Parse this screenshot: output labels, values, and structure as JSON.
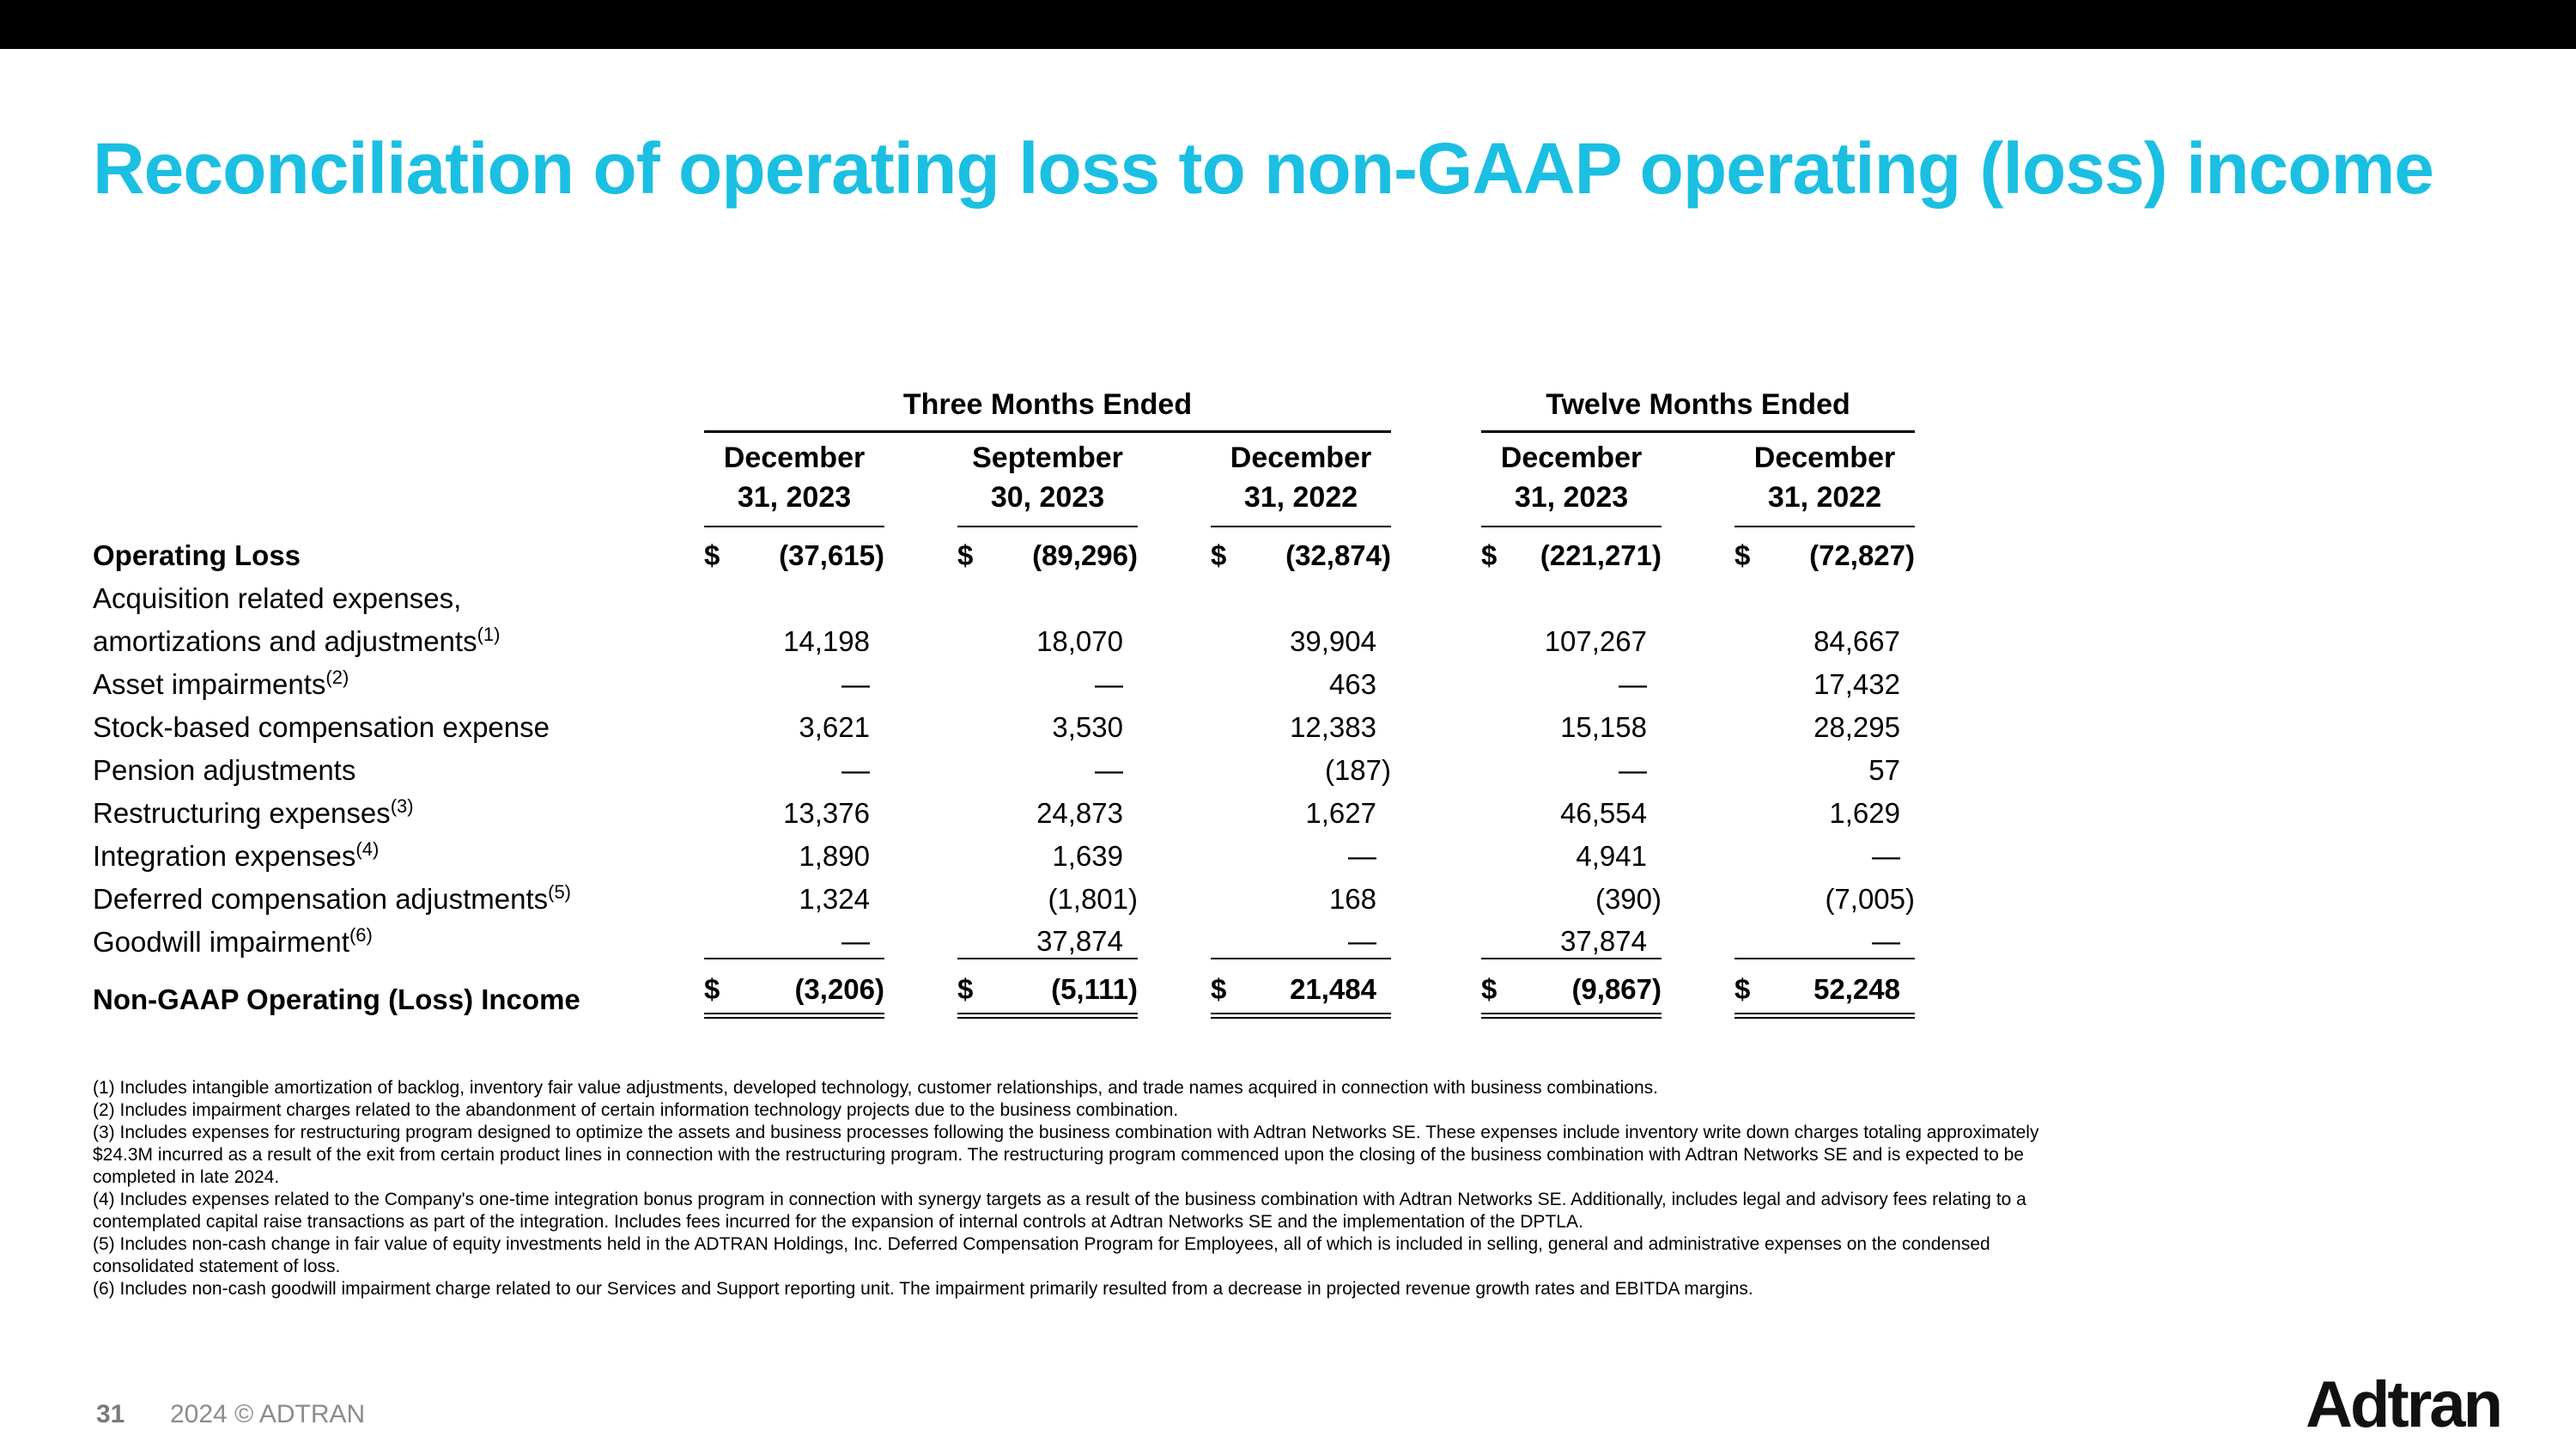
{
  "slide": {
    "title": "Reconciliation of operating loss to non-GAAP operating (loss) income",
    "accent_color": "#1BBFE2",
    "footer": {
      "page_number": "31",
      "copyright": "2024 © ADTRAN",
      "logo_text": "Adtran"
    }
  },
  "table": {
    "group_headers": [
      "Three Months Ended",
      "Twelve Months Ended"
    ],
    "columns": [
      {
        "line1": "December",
        "line2": "31, 2023"
      },
      {
        "line1": "September",
        "line2": "30, 2023"
      },
      {
        "line1": "December",
        "line2": "31, 2022"
      },
      {
        "line1": "December",
        "line2": "31, 2023"
      },
      {
        "line1": "December",
        "line2": "31, 2022"
      }
    ],
    "rows": [
      {
        "label": "Operating Loss",
        "sup": "",
        "ds": "$",
        "values": [
          "(37,615)",
          "(89,296)",
          "(32,874)",
          "(221,271)",
          "(72,827)"
        ]
      },
      {
        "label": "Acquisition related expenses,",
        "sup": "",
        "ds": "",
        "values": [
          "",
          "",
          "",
          "",
          ""
        ]
      },
      {
        "label": "amortizations and adjustments",
        "sup": "(1)",
        "ds": "",
        "values": [
          "14,198",
          "18,070",
          "39,904",
          "107,267",
          "84,667"
        ]
      },
      {
        "label": "Asset impairments",
        "sup": "(2)",
        "ds": "",
        "values": [
          "—",
          "—",
          "463",
          "—",
          "17,432"
        ]
      },
      {
        "label": "Stock-based compensation expense",
        "sup": "",
        "ds": "",
        "values": [
          "3,621",
          "3,530",
          "12,383",
          "15,158",
          "28,295"
        ]
      },
      {
        "label": "Pension adjustments",
        "sup": "",
        "ds": "",
        "values": [
          "—",
          "—",
          "(187)",
          "—",
          "57"
        ]
      },
      {
        "label": "Restructuring expenses",
        "sup": "(3)",
        "ds": "",
        "values": [
          "13,376",
          "24,873",
          "1,627",
          "46,554",
          "1,629"
        ]
      },
      {
        "label": "Integration expenses",
        "sup": "(4)",
        "ds": "",
        "values": [
          "1,890",
          "1,639",
          "—",
          "4,941",
          "—"
        ]
      },
      {
        "label": "Deferred compensation adjustments",
        "sup": "(5)",
        "ds": "",
        "values": [
          "1,324",
          "(1,801)",
          "168",
          "(390)",
          "(7,005)"
        ]
      },
      {
        "label": "Goodwill impairment",
        "sup": "(6)",
        "ds": "",
        "values": [
          "—",
          "37,874",
          "—",
          "37,874",
          "—"
        ]
      },
      {
        "label": "Non-GAAP Operating (Loss) Income",
        "sup": "",
        "ds": "$",
        "values": [
          "(3,206)",
          "(5,111)",
          "21,484",
          "(9,867)",
          "52,248"
        ]
      }
    ]
  },
  "footnotes": [
    "(1)  Includes intangible amortization of backlog, inventory fair value adjustments, developed technology, customer relationships, and trade names acquired in connection with business combinations.",
    "(2)  Includes impairment charges related to the abandonment of certain information technology projects due to the business combination.",
    "(3)  Includes expenses for restructuring program designed to optimize the assets and business processes following the business combination with Adtran Networks SE. These expenses include inventory write down charges totaling approximately $24.3M incurred as a result of the exit from certain product lines in connection with the restructuring program. The restructuring program commenced upon the closing of the business combination with Adtran Networks SE and is expected to be completed in late 2024.",
    "(4) Includes expenses related to the Company's one-time integration bonus program in connection with synergy targets as a result of the business combination with Adtran Networks SE. Additionally, includes legal and advisory fees relating to a contemplated capital raise transactions as part of the integration. Includes fees incurred for the expansion of internal controls at Adtran Networks SE and the implementation of the DPTLA.",
    "(5) Includes non-cash change in fair value of equity investments held in the ADTRAN Holdings, Inc. Deferred Compensation Program for Employees, all of which is included in selling, general and administrative expenses on the condensed consolidated statement of loss.",
    "(6) Includes non-cash goodwill impairment charge related to our Services and Support reporting unit. The impairment primarily resulted from a decrease in projected revenue growth rates and EBITDA margins."
  ]
}
